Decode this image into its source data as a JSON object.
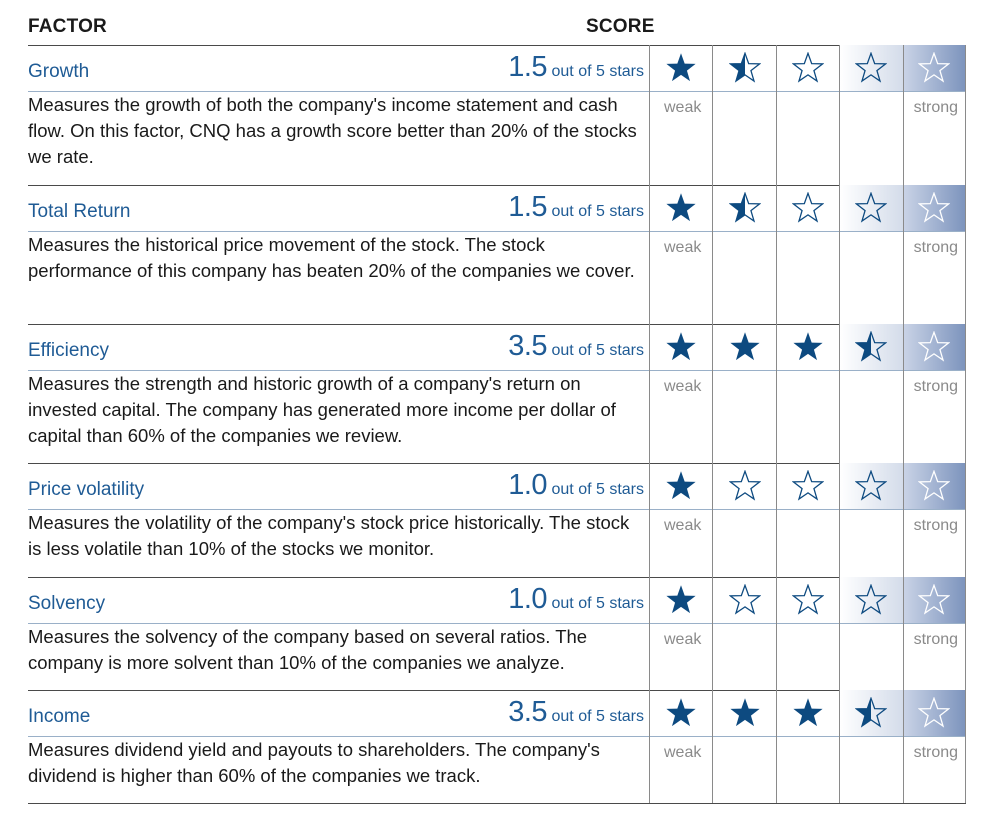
{
  "header": {
    "factor_label": "FACTOR",
    "score_label": "SCORE"
  },
  "scale": {
    "weak_label": "weak",
    "strong_label": "strong",
    "out_of_label": "out of 5 stars",
    "max_stars": 5
  },
  "colors": {
    "accent": "#1f5b95",
    "star_fill": "#0d4a80"
  },
  "factors": [
    {
      "name": "Growth",
      "score": "1.5",
      "stars": 1.5,
      "description": "Measures the growth of both the company's income statement and cash flow. On this factor, CNQ has a growth score better than 20% of the stocks we rate."
    },
    {
      "name": "Total Return",
      "score": "1.5",
      "stars": 1.5,
      "description": "Measures the historical price movement of the stock. The stock performance of this company has beaten 20% of the companies we cover."
    },
    {
      "name": "Efficiency",
      "score": "3.5",
      "stars": 3.5,
      "description": "Measures the strength and historic growth of a company's return on invested capital. The company has generated more income per dollar of capital than 60% of the companies we review."
    },
    {
      "name": "Price volatility",
      "score": "1.0",
      "stars": 1.0,
      "description": "Measures the volatility of the company's stock price historically. The stock is less volatile than 10% of the stocks we monitor."
    },
    {
      "name": "Solvency",
      "score": "1.0",
      "stars": 1.0,
      "description": "Measures the solvency of the company based on several ratios. The company is more solvent than 10% of the companies we analyze."
    },
    {
      "name": "Income",
      "score": "3.5",
      "stars": 3.5,
      "description": "Measures dividend yield and payouts to shareholders. The company's dividend is higher than 60% of the companies we track."
    }
  ]
}
